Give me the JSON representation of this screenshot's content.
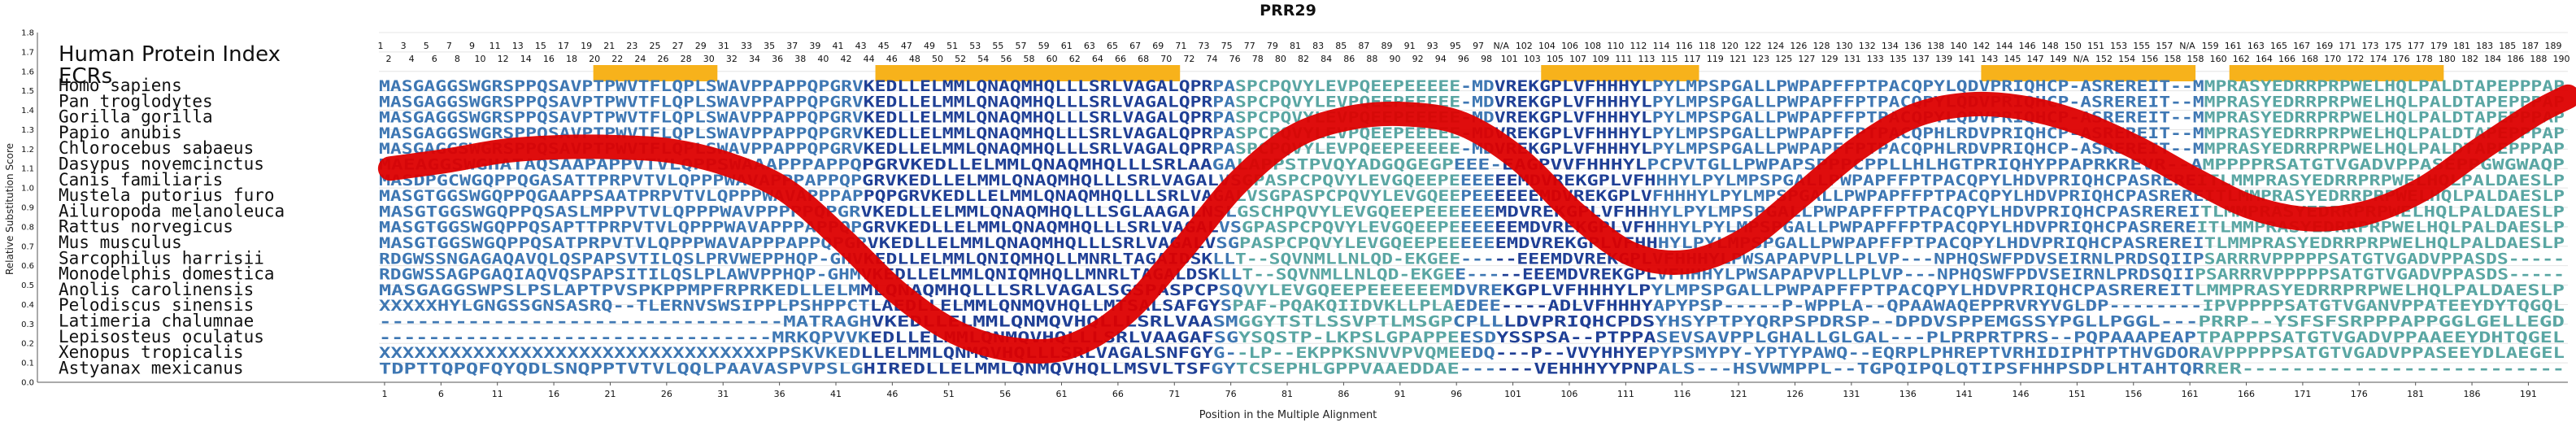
{
  "chart_data": {
    "type": "line",
    "title": "PRR29",
    "xlabel": "Position in the Multiple Alignment",
    "ylabel": "Relative Substitution Score",
    "ylim": [
      0.0,
      1.8
    ],
    "yticks": [
      "0.0",
      "0.1",
      "0.2",
      "0.3",
      "0.4",
      "0.5",
      "0.6",
      "0.7",
      "0.8",
      "0.9",
      "1.0",
      "1.1",
      "1.2",
      "1.3",
      "1.4",
      "1.5",
      "1.6",
      "1.7",
      "1.8"
    ],
    "xlim": [
      0,
      194
    ],
    "xticks": [
      "1",
      "6",
      "11",
      "16",
      "21",
      "26",
      "31",
      "36",
      "41",
      "46",
      "51",
      "56",
      "61",
      "66",
      "71",
      "76",
      "81",
      "86",
      "91",
      "96",
      "101",
      "106",
      "111",
      "116",
      "121",
      "126",
      "131",
      "136",
      "141",
      "146",
      "151",
      "156",
      "161",
      "166",
      "171",
      "176",
      "181",
      "186",
      "191"
    ],
    "index_label": "Human Protein Index",
    "ecr_label": "ECRs",
    "index_row1": [
      "1",
      "3",
      "5",
      "7",
      "9",
      "11",
      "13",
      "15",
      "17",
      "19",
      "21",
      "23",
      "25",
      "27",
      "29",
      "31",
      "33",
      "35",
      "37",
      "39",
      "41",
      "43",
      "45",
      "47",
      "49",
      "51",
      "53",
      "55",
      "57",
      "59",
      "61",
      "63",
      "65",
      "67",
      "69",
      "71",
      "73",
      "75",
      "77",
      "79",
      "81",
      "83",
      "85",
      "87",
      "89",
      "91",
      "93",
      "95",
      "97",
      "N/A",
      "102",
      "104",
      "106",
      "108",
      "110",
      "112",
      "114",
      "116",
      "118",
      "120",
      "122",
      "124",
      "126",
      "128",
      "130",
      "132",
      "134",
      "136",
      "138",
      "140",
      "142",
      "144",
      "146",
      "148",
      "150",
      "151",
      "153",
      "155",
      "157",
      "N/A",
      "159",
      "161",
      "163",
      "165",
      "167",
      "169",
      "171",
      "173",
      "175",
      "177",
      "179",
      "181",
      "183",
      "185",
      "187",
      "189"
    ],
    "index_row2": [
      "2",
      "4",
      "6",
      "8",
      "10",
      "12",
      "14",
      "16",
      "18",
      "20",
      "22",
      "24",
      "26",
      "28",
      "30",
      "32",
      "34",
      "36",
      "38",
      "40",
      "42",
      "44",
      "46",
      "48",
      "50",
      "52",
      "54",
      "56",
      "58",
      "60",
      "62",
      "64",
      "66",
      "68",
      "70",
      "72",
      "74",
      "76",
      "78",
      "80",
      "82",
      "84",
      "86",
      "88",
      "90",
      "92",
      "94",
      "96",
      "98",
      "101",
      "103",
      "105",
      "107",
      "109",
      "111",
      "113",
      "115",
      "117",
      "119",
      "121",
      "123",
      "125",
      "127",
      "129",
      "131",
      "133",
      "135",
      "137",
      "139",
      "141",
      "143",
      "145",
      "147",
      "149",
      "N/A",
      "152",
      "154",
      "156",
      "158",
      "158",
      "160",
      "162",
      "164",
      "166",
      "168",
      "170",
      "172",
      "174",
      "176",
      "178",
      "180",
      "182",
      "184",
      "186",
      "188",
      "190"
    ],
    "ecr_regions": [
      [
        20,
        30
      ],
      [
        45,
        71
      ],
      [
        104,
        117
      ],
      [
        143,
        161
      ],
      [
        165,
        183
      ]
    ],
    "species": [
      "Homo sapiens",
      "Pan troglodytes",
      "Gorilla gorilla",
      "Papio anubis",
      "Chlorocebus sabaeus",
      "Dasypus novemcinctus",
      "Canis familiaris",
      "Mustela putorius furo",
      "Ailuropoda melanoleuca",
      "Rattus norvegicus",
      "Mus musculus",
      "Sarcophilus harrisii",
      "Monodelphis domestica",
      "Anolis carolinensis",
      "Pelodiscus sinensis",
      "Latimeria chalumnae",
      "Lepisosteus oculatus",
      "Xenopus tropicalis",
      "Astyanax mexicanus"
    ],
    "sequences": [
      "MASGAGGSWGRSPPQSAVPTPWVTFLQPLSWAVPPAPPQPGRVKEDLLELMMLQNAQMHQLLLSRLVAGALQPRPASPCPQVYLEVPQEEPEEEEE-MDVREKGPLVFHHHYLPYLMPSPGALLPWPAPFFPTPACQPYLQDVPRIQHCP-ASREREIT--MMPRASYEDRRPRPWELHQLPALDTAPEPPPAP",
      "MASGAGGSWGRSPPQSAVPTPWVTFLQPLSWAVPPAPPQPGRVKEDLLELMMLQNAQMHQLLLSRLVAGALQPRPASPCPQVYLEVPQEEPEEEEE-MDVREKGPLVFHHHYLPYLMPSPGALLPWPAPFFPTPACQPYLQDVPRIQHCP-ASREREIT--MMPRASYEDRRPRPWELHQLPALDTAPEPPPAP",
      "MASGAGGSWGRSPPQSAVPTPWVTFLQPLSWAVPPAPPQPGRVKEDLLELMMLQNAQMHQLLLSRLVAGALQPRPASPCPQVYLEVPQEEPEEEEE-MDVREKGPLVFHHHYLPYLMPSPGALLPWPAPFFPTPACQPYLQDVPRIQHCP-ASREREIT--MMPRASYEDRRPRPWELHQLPALDTAPEPPPAP",
      "MASGAGGSWGRSPPQSAVPTPWVTFLQPLSWAVPPAPPQPGRVKEDLLELMMLQNAQMHQLLLSRLVAGALQPRPASPCPQVYLEVPQEEPEEEEE-MDVREKGPLVFHHHYLPYLMPSPGALLPWPAPFFPTPACQPHLRDVPRIQHCP-ASREREIT--MMPRASYEDRRPRPWELHQLPALDTAPEPPPAP",
      "MASGAGGSWGRSPPQSAVPTPWVTFLQPLSWAVPPAPPQPGRVKEDLLELMMLQNAQMHQLLLSRLVAGALQPRPASPCPQVYLEVPQEEPEEEEE-MDVREKGPLVFHHHYLPYLMPSPGALLPWPAPFFPTPACQPHLRDVPRIQHCP-ASREREIT--MMPRASYEDRRPRPWELHQLPALDTAPEPPPAP",
      "MAEAGGSWGHATAQSAAPAPPVTVLQPPSWAAAPPPAPPQPGRVKEDLLELMMLQNAQMHQLLLSRLAAGALAPPSTPVQYADGQGEGPEEE-EAGPVVFHHHYLPCPVTGLLPWPAPSPPPCPPLLHLHGTPRIQHYPPAPRKREVR--AMPPPPRSATGTVGADVPPASEPPGWGWAQP",
      "MASDPGCWGQPPQGASATTPRPVTVLQPPPWAVAPPPAPPQPGRVKEDLLELMMLQNAQMHQLLLSRLVAGALVSGPASPCPQVYLEVGQEEPEEEEEEMDVREKGPLVFHHHYLPYLMPSPGALLPWPAPFFPTPACQPYLHDVPRIQHCPASREREITLMMPRASYEDRRPRPWELHQLPALDAESLP",
      "MASGTGGSWGQPPQGAAPPSAATPRPVTVLQPPPWAVAPPPAPPQPGRVKEDLLELMMLQNAQMHQLLLSRLVAGALVSGPASPCPQVYLEVGQEEPEEEEEEMDVREKGPLVFHHHYLPYLMPSPGALLPWPAPFFPTPACQPYLHDVPRIQHCPASREREITLMMPRASYEDRRPRPWELHQLPALDAESLP",
      "MASGTGGSWGQPPQSASLMPPVTVLQPPPWAVPPPPPQPGRVKEDLLELMMLQNAQMHQLLLSGLAAGALNSLGSCHPQVYLEVGQEEPEEEEEEMDVREKGPLVFHHHYLPYLMPSPGALLPWPAPFFPTPACQPYLHDVPRIQHCPASREREITLMMPRASYEDRRPRPWELHQLPALDAESLP",
      "MASGTGGSWGQPPQSAPTTPRPVTVLQPPPWAVAPPPAPPQPGRVKEDLLELMMLQNAQMHQLLLSRLVAGALVSGPASPCPQVYLEVGQEEPEEEEEEMDVREKGPLVFHHHYLPYLMPSPGALLPWPAPFFPTPACQPYLHDVPRIQHCPASREREITLMMPRASYEDRRPRPWELHQLPALDAESLP",
      "MASGTGGSWGQPPQSATPRPVTVLQPPPWAVAPPPAPPQPGRVKEDLLELMMLQNAQMHQLLLSRLVAGALVSGPASPCPQVYLEVGQEEPEEEEEEMDVREKGPLVFHHHYLPYLMPSPGALLPWPAPFFPTPACQPYLHDVPRIQHCPASREREITLMMPRASYEDRRPRPWELHQLPALDAESLP",
      "RDGWSSNGAGAQAVQLQSPAPSVTILQSLPRVWEPPHQP-GHVKEDLLELMMLQNIQMHQLLMNRLTAGAIDSKLLT--SQVNMLLNLQD-EKGEE-----EEEMDVREKGPLVFHHHYLPWSAPAPVPLLPLVP---NPHQSWFPDVSEIRNLPRDSQIIPSARRRVPPPPPSATGTVGADVPPASDS-----",
      "RDGWSSAGPGAQIAQVQSPAPSITILQSLPLAWVPPHQP-GHMVKEDLLELMMLQNIQMHQLLMNRLTAGALDSKLLT--SQVNMLLNLQD-EKGEE-----EEEMDVREKGPLVFHHHYLPWSAPAPVPLLPLVP---NPHQSWFPDVSEIRNLPRDSQIIPSARRRVPPPPPSATGTVGADVPPASDS-----",
      "MASGAGGSWPSLPSLAPTPVSPKPPMPFRPRKEDLLELMMLQNAQMHQLLLSRLVAGALSGSPASPCPSQVYLEVGQEEPEEEEEEMDVREKGPLVFHHHYLPYLMPSPGALLPWPAPFFPTPACQPYLHDVPRIQHCPASREREITLMMPRASYEDRRPRPWELHQLPALDAESLP",
      "XXXXXHYLGNGSSGNSASRQ--TLERNVSWSIPPLPSHPPCTLAEDLLELMMLQNMQVHQLLMTSALSAFGYSPAF-PQAKQIIDVKLLPLAEDEE----ADLVFHHHYAPYPSP-----P-WPPLA--QPAAWAQEPPRVRYVGLDP--------IPVPPPPSATGTVGANVPPATEEYDYTQGQL",
      "--------------------------------MATRAGHVKEDLLELMMLQNMQVHQLLLSRLVAASMGGYTSTLSSVPTLMSGPCPLLLDVPRIQHCPDSYHSYPTPYQRPSPDRSP--DPDVSPPEMGSSYPGLLPGGL---PRRP--YSFSFSRPPPAPPGGLGELLEGD",
      "--------------------------------MRKQPVVKEDLLELMMLQNMQVHQLLLSRLVAAGAFSGYSQSTP-LKPSLGPAPPEESDYSSPSA--PTPPASEVSAVPPLGHALLGLGAL---PLPRPRTPRS--PQPAAAPEAPTPAPPPSATGTVGADVPPAAEEYDHTQGEL",
      "XXXXXXXXXXXXXXXXXXXXXXXXXXXXXXXXXPPSKVKEDLLELMMLQNMQVHQLLLSRLVAGALSNFGYG--LP--EKPPKSNVVPVQMEEDQ---P--VVYHHYEPYPSMYPY-YPTYPAWQ--EQRPLPHREPTVRHIDIPHTPTHVGDORAVPPPPPSATGTVGADVPPASEEYDLAEGEL",
      "TDPTTQPQFQYQDLSNQPPTVTVLQQLPAAVASPVPSLGHIREDLLELMMLQNMQVHQLLMSVLTSFGYTCSEPHLGPPVAAEDDAE------VEHHHYYPNPALS---HSVWMPPL--TGPQIPQLQTIPSFHHPSDPLHTAHTQRRER--------------------------"
    ],
    "series": [
      {
        "x": [
          1,
          6,
          11,
          16,
          21,
          26,
          31,
          36,
          41,
          46,
          51,
          56,
          61,
          66,
          71,
          76,
          81,
          86,
          91,
          96,
          101,
          106,
          111,
          116,
          121,
          126,
          131,
          136,
          141,
          146,
          151,
          156,
          161,
          166,
          171,
          176,
          181,
          186,
          191,
          194
        ],
        "y": [
          1.1,
          1.14,
          1.19,
          1.21,
          1.21,
          1.19,
          1.12,
          0.99,
          0.74,
          0.46,
          0.26,
          0.17,
          0.18,
          0.35,
          0.67,
          1.02,
          1.26,
          1.36,
          1.38,
          1.33,
          1.15,
          0.87,
          0.66,
          0.62,
          0.73,
          0.96,
          1.2,
          1.37,
          1.43,
          1.41,
          1.33,
          1.2,
          1.04,
          0.9,
          0.84,
          0.87,
          0.99,
          1.19,
          1.38,
          1.47
        ]
      }
    ],
    "colors": {
      "conserved": "#1f3f95",
      "mid": "#3e77b3",
      "variable": "#5aa6a3",
      "low": "#7fb36a",
      "ecr": "#f7b21b",
      "curve": "#dd0000",
      "grid": "#e4e4e4",
      "axis": "#555555",
      "text": "#111111"
    }
  }
}
